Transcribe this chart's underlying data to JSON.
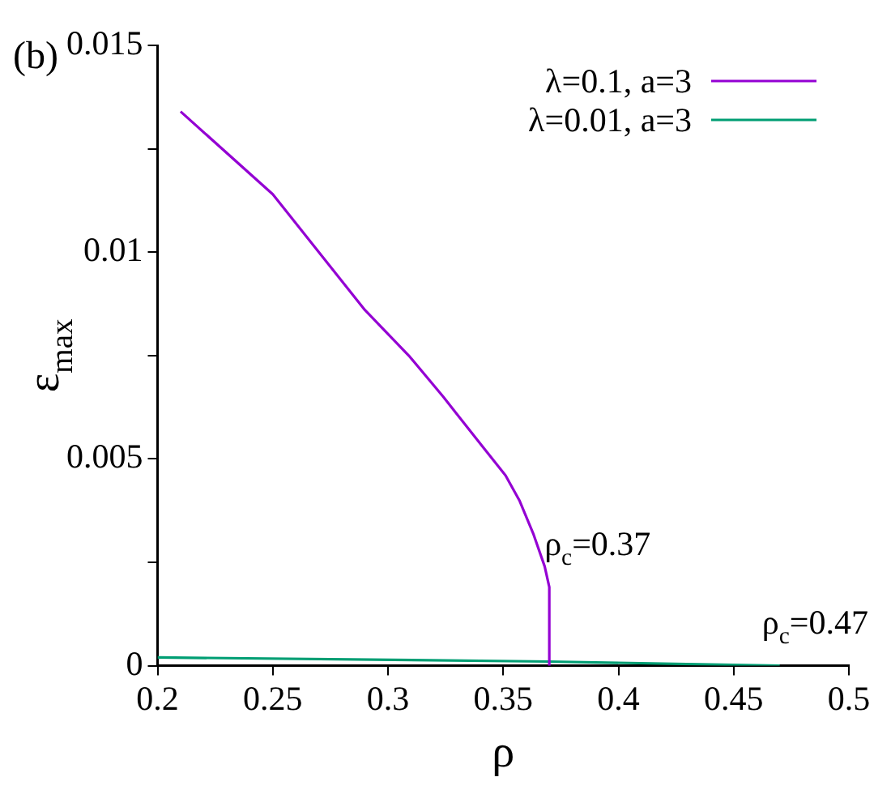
{
  "chart_data": {
    "type": "line",
    "title": "(b)",
    "xlabel": "ρ",
    "ylabel": "ε$_{max}$",
    "xlim": [
      0.2,
      0.5
    ],
    "xticks": [
      0.2,
      0.25,
      0.3,
      0.35,
      0.4,
      0.45,
      0.5
    ],
    "ylim": [
      0,
      0.015
    ],
    "yticks": [
      0,
      {
        "value": 0.0025,
        "label": null
      },
      0.005,
      {
        "value": 0.0075,
        "label": null
      },
      0.01,
      {
        "value": 0.0125,
        "label": null
      },
      0.015
    ],
    "series": [
      {
        "name": "λ=0.1, a=3",
        "color": "#9400d3",
        "x": [
          0.21,
          0.25,
          0.29,
          0.309,
          0.324,
          0.341,
          0.351,
          0.357,
          0.363,
          0.368,
          0.37,
          0.37
        ],
        "values": [
          0.0134,
          0.0114,
          0.0086,
          0.0075,
          0.0065,
          0.0053,
          0.0046,
          0.004,
          0.0032,
          0.0024,
          0.0019,
          0
        ]
      },
      {
        "name": "λ=0.01, a=3",
        "color": "#009e73",
        "x": [
          0.2,
          0.37,
          0.47
        ],
        "values": [
          0.0002,
          0.0001,
          0
        ]
      }
    ],
    "annotations": [
      {
        "text": "ρ$_{c}$=0.37",
        "x": 0.37,
        "y": 0.0019
      },
      {
        "text": "ρ$_{c}$=0.47",
        "x": 0.47,
        "y": 0
      }
    ],
    "legend": "top right",
    "grid": false,
    "marker": "none",
    "line_style": "solid"
  }
}
